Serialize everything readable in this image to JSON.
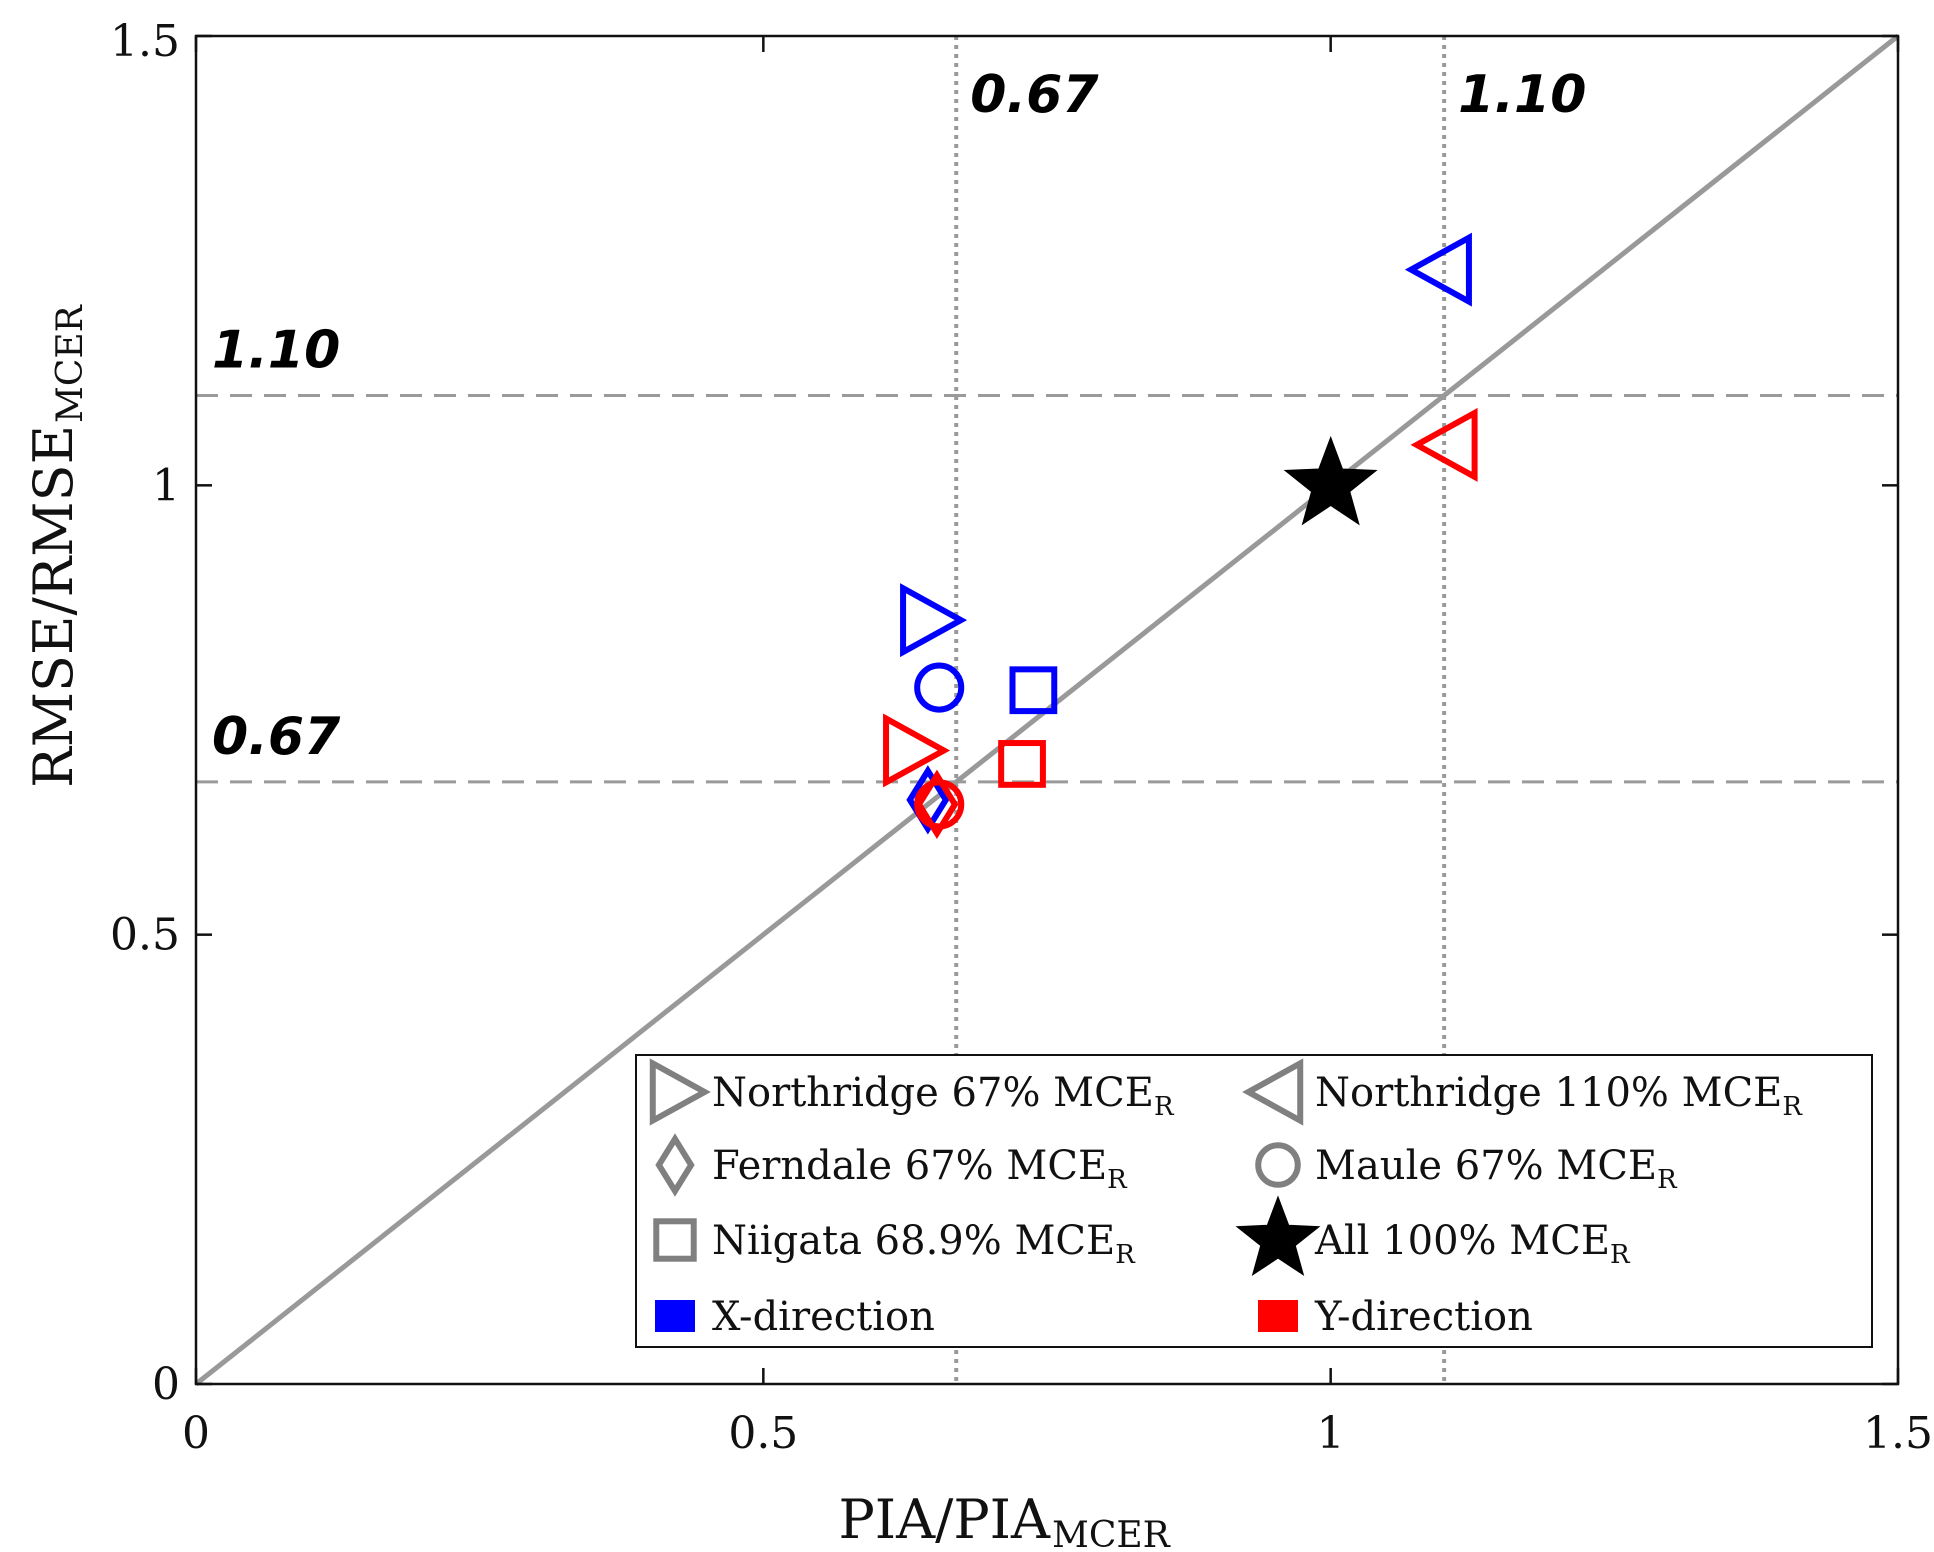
{
  "chart_data": {
    "type": "scatter",
    "xlabel": "PIA/PIA",
    "xlabel_sub": "MCER",
    "ylabel": "RMSE/RMSE",
    "ylabel_sub": "MCER",
    "xlim": [
      0,
      1.5
    ],
    "ylim": [
      0,
      1.5
    ],
    "xticks": [
      0,
      0.5,
      1,
      1.5
    ],
    "yticks": [
      0,
      0.5,
      1,
      1.5
    ],
    "xtick_labels": [
      "0",
      "0.5",
      "1",
      "1.5"
    ],
    "ytick_labels": [
      "0",
      "0.5",
      "1",
      "1.5"
    ],
    "grid": false,
    "legend_position": "bottom-right",
    "identity_line": {
      "from": [
        0,
        0
      ],
      "to": [
        1.5,
        1.5
      ],
      "color": "#999999"
    },
    "reference_lines": [
      {
        "orientation": "vertical",
        "value": 0.67,
        "label": "0.67",
        "style": "dotted"
      },
      {
        "orientation": "vertical",
        "value": 1.1,
        "label": "1.10",
        "style": "dotted"
      },
      {
        "orientation": "horizontal",
        "value": 0.67,
        "label": "0.67",
        "style": "dashed"
      },
      {
        "orientation": "horizontal",
        "value": 1.1,
        "label": "1.10",
        "style": "dashed"
      }
    ],
    "colors": {
      "x_direction": "#0000ff",
      "y_direction": "#ff0000",
      "legend_marker": "#808080",
      "all": "#000000"
    },
    "series": [
      {
        "name": "Northridge 67% MCE_R",
        "marker": "triangle-right",
        "points": [
          {
            "direction": "X",
            "x": 0.645,
            "y": 0.85
          },
          {
            "direction": "Y",
            "x": 0.63,
            "y": 0.705
          }
        ]
      },
      {
        "name": "Northridge 110% MCE_R",
        "marker": "triangle-left",
        "points": [
          {
            "direction": "X",
            "x": 1.1,
            "y": 1.24
          },
          {
            "direction": "Y",
            "x": 1.105,
            "y": 1.045
          }
        ]
      },
      {
        "name": "Ferndale 67% MCE_R",
        "marker": "diamond",
        "points": [
          {
            "direction": "X",
            "x": 0.645,
            "y": 0.65
          },
          {
            "direction": "Y",
            "x": 0.653,
            "y": 0.645
          }
        ]
      },
      {
        "name": "Maule 67% MCE_R",
        "marker": "circle",
        "points": [
          {
            "direction": "X",
            "x": 0.655,
            "y": 0.775
          },
          {
            "direction": "Y",
            "x": 0.655,
            "y": 0.645
          }
        ]
      },
      {
        "name": "Niigata 68.9% MCE_R",
        "marker": "square",
        "points": [
          {
            "direction": "X",
            "x": 0.738,
            "y": 0.772
          },
          {
            "direction": "Y",
            "x": 0.728,
            "y": 0.69
          }
        ]
      },
      {
        "name": "All 100% MCE_R",
        "marker": "star",
        "points": [
          {
            "direction": "All",
            "x": 1.0,
            "y": 1.0
          }
        ]
      }
    ],
    "legend": [
      {
        "main": "Northridge 67% MCE",
        "sub": "R",
        "marker": "triangle-right"
      },
      {
        "main": "Northridge 110% MCE",
        "sub": "R",
        "marker": "triangle-left"
      },
      {
        "main": "Ferndale 67% MCE",
        "sub": "R",
        "marker": "diamond"
      },
      {
        "main": "Maule 67% MCE",
        "sub": "R",
        "marker": "circle"
      },
      {
        "main": "Niigata 68.9% MCE",
        "sub": "R",
        "marker": "square"
      },
      {
        "main": "All 100% MCE",
        "sub": "R",
        "marker": "star"
      },
      {
        "main": "X-direction",
        "sub": "",
        "marker": "filled-square-blue"
      },
      {
        "main": "Y-direction",
        "sub": "",
        "marker": "filled-square-red"
      }
    ]
  }
}
